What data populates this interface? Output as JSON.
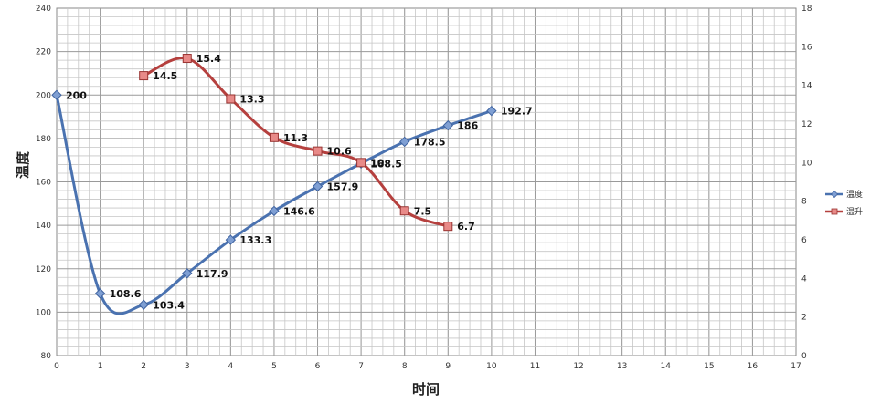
{
  "chart_data": {
    "type": "line",
    "xlabel": "时间",
    "ylabel": "温度",
    "x_ticks": [
      "0",
      "1",
      "2",
      "3",
      "4",
      "5",
      "6",
      "7",
      "8",
      "9",
      "10",
      "11",
      "12",
      "13",
      "14",
      "15",
      "16",
      "17"
    ],
    "y_ticks": [
      "80",
      "100",
      "120",
      "140",
      "160",
      "180",
      "200",
      "220",
      "240"
    ],
    "y2_ticks": [
      "0",
      "2",
      "4",
      "6",
      "8",
      "10",
      "12",
      "14",
      "16",
      "18"
    ],
    "xlim": [
      0,
      17
    ],
    "ylim": [
      80,
      240
    ],
    "y2lim": [
      0,
      18
    ],
    "grid": true,
    "legend_position": "right",
    "series": [
      {
        "name": "温度",
        "axis": "left",
        "color": "#4a72b0",
        "marker": "diamond",
        "x": [
          0,
          1,
          2,
          3,
          4,
          5,
          6,
          7,
          8,
          9,
          10
        ],
        "values": [
          200,
          108.6,
          103.4,
          117.9,
          133.3,
          146.6,
          157.9,
          168.5,
          178.5,
          186,
          192.7
        ],
        "labels": [
          "200",
          "108.6",
          "103.4",
          "117.9",
          "133.3",
          "146.6",
          "157.9",
          "168.5",
          "178.5",
          "186",
          "192.7"
        ]
      },
      {
        "name": "温升",
        "axis": "right",
        "color": "#b5403e",
        "marker": "square",
        "x": [
          2,
          3,
          4,
          5,
          6,
          7,
          8,
          9
        ],
        "values": [
          14.5,
          15.4,
          13.3,
          11.3,
          10.6,
          10,
          7.5,
          6.7
        ],
        "labels": [
          "14.5",
          "15.4",
          "13.3",
          "11.3",
          "10.6",
          "10",
          "7.5",
          "6.7"
        ]
      }
    ]
  }
}
